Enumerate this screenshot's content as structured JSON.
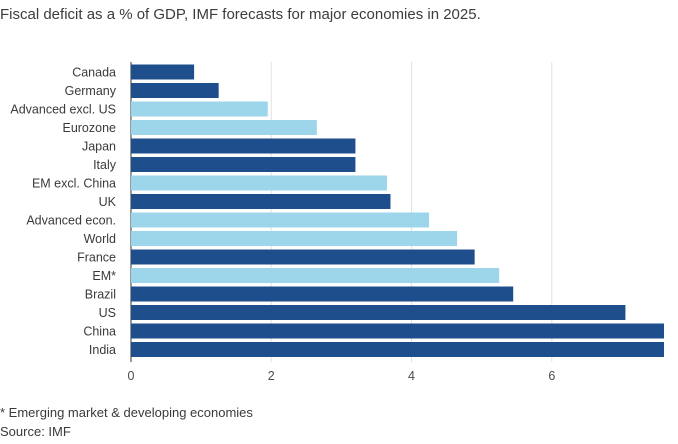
{
  "chart_data": {
    "type": "bar",
    "orientation": "horizontal",
    "title": "Fiscal deficit as a % of GDP, IMF forecasts for major economies in 2025.",
    "categories": [
      "Canada",
      "Germany",
      "Advanced excl. US",
      "Eurozone",
      "Japan",
      "Italy",
      "EM excl. China",
      "UK",
      "Advanced econ.",
      "World",
      "France",
      "EM*",
      "Brazil",
      "US",
      "China",
      "India"
    ],
    "values": [
      0.9,
      1.25,
      1.95,
      2.65,
      3.2,
      3.2,
      3.65,
      3.7,
      4.25,
      4.65,
      4.9,
      5.25,
      5.45,
      7.05,
      7.6,
      7.6
    ],
    "groups": [
      "economy",
      "economy",
      "aggregate",
      "aggregate",
      "economy",
      "economy",
      "aggregate",
      "economy",
      "aggregate",
      "aggregate",
      "economy",
      "aggregate",
      "economy",
      "economy",
      "economy",
      "economy"
    ],
    "xlim": [
      0,
      7.6
    ],
    "xticks": [
      0,
      2,
      4,
      6
    ],
    "xlabel": "",
    "ylabel": "",
    "grid": true,
    "colors": {
      "economy": "#1f4e8c",
      "aggregate": "#9dd5eb",
      "grid": "#e2e2e2",
      "axis": "#333333"
    }
  },
  "footnote": "* Emerging market & developing economies",
  "source": "Source: IMF"
}
